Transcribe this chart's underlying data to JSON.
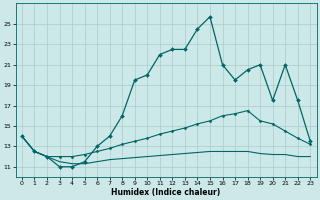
{
  "xlabel": "Humidex (Indice chaleur)",
  "background_color": "#cce8e8",
  "grid_color": "#aacccc",
  "line_color": "#006666",
  "xlim": [
    -0.5,
    23.5
  ],
  "ylim": [
    10.0,
    27.0
  ],
  "yticks": [
    11,
    13,
    15,
    17,
    19,
    21,
    23,
    25
  ],
  "xticks": [
    0,
    1,
    2,
    3,
    4,
    5,
    6,
    7,
    8,
    9,
    10,
    11,
    12,
    13,
    14,
    15,
    16,
    17,
    18,
    19,
    20,
    21,
    22,
    23
  ],
  "series1_x": [
    0,
    1,
    2,
    3,
    4,
    5,
    6,
    7,
    8,
    9,
    10,
    11,
    12,
    13,
    14,
    15,
    16,
    17,
    18,
    19,
    20,
    21,
    22,
    23
  ],
  "series1_y": [
    14.0,
    12.5,
    12.0,
    11.0,
    11.0,
    11.5,
    13.0,
    14.0,
    16.0,
    19.5,
    20.0,
    22.0,
    22.5,
    22.5,
    24.5,
    25.7,
    21.0,
    19.5,
    20.5,
    21.0,
    17.5,
    21.0,
    17.5,
    13.5
  ],
  "series2_x": [
    0,
    1,
    2,
    3,
    4,
    5,
    6,
    7,
    8,
    9,
    10,
    11,
    12,
    13,
    14,
    15,
    16,
    17,
    18,
    19,
    20,
    21,
    22,
    23
  ],
  "series2_y": [
    14.0,
    12.5,
    12.0,
    12.0,
    12.0,
    12.2,
    12.5,
    12.8,
    13.2,
    13.5,
    13.8,
    14.2,
    14.5,
    14.8,
    15.2,
    15.5,
    16.0,
    16.2,
    16.5,
    15.5,
    15.2,
    14.5,
    13.8,
    13.2
  ],
  "series3_x": [
    0,
    1,
    2,
    3,
    4,
    5,
    6,
    7,
    8,
    9,
    10,
    11,
    12,
    13,
    14,
    15,
    16,
    17,
    18,
    19,
    20,
    21,
    22,
    23
  ],
  "series3_y": [
    14.0,
    12.5,
    12.0,
    11.5,
    11.3,
    11.3,
    11.5,
    11.7,
    11.8,
    11.9,
    12.0,
    12.1,
    12.2,
    12.3,
    12.4,
    12.5,
    12.5,
    12.5,
    12.5,
    12.3,
    12.2,
    12.2,
    12.0,
    12.0
  ]
}
